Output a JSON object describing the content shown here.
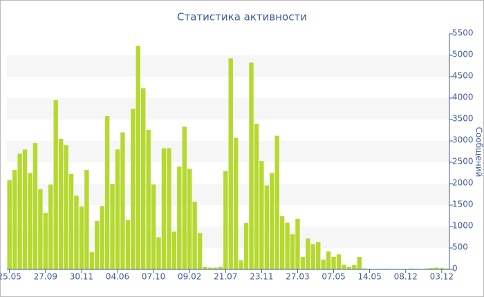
{
  "chart_data": {
    "type": "bar",
    "title": "Статистика активности",
    "y_axis_label": "Сообщений",
    "categories": [
      "25.05",
      null,
      null,
      null,
      null,
      null,
      null,
      "27.09",
      null,
      null,
      null,
      null,
      null,
      null,
      "30.11",
      null,
      null,
      null,
      null,
      null,
      null,
      "04.06",
      null,
      null,
      null,
      null,
      null,
      null,
      "07.10",
      null,
      null,
      null,
      null,
      null,
      null,
      "09.02",
      null,
      null,
      null,
      null,
      null,
      null,
      "21.07",
      null,
      null,
      null,
      null,
      null,
      null,
      "23.11",
      null,
      null,
      null,
      null,
      null,
      null,
      "27.03",
      null,
      null,
      null,
      null,
      null,
      null,
      "07.05",
      null,
      null,
      null,
      null,
      null,
      null,
      "14.05",
      null,
      null,
      null,
      null,
      null,
      null,
      "08.12",
      null,
      null,
      null,
      null,
      null,
      null,
      "03.12",
      null
    ],
    "values": [
      2080,
      2320,
      2700,
      2800,
      2250,
      2950,
      1870,
      1320,
      1980,
      3950,
      3050,
      2900,
      2230,
      1720,
      1470,
      2320,
      400,
      1130,
      1480,
      3580,
      2000,
      2800,
      3200,
      1150,
      3750,
      5220,
      4230,
      3260,
      1980,
      750,
      2830,
      2830,
      880,
      2400,
      3330,
      2350,
      1580,
      850,
      60,
      40,
      40,
      60,
      2300,
      4930,
      3070,
      210,
      1080,
      4830,
      3400,
      2530,
      1960,
      2250,
      3120,
      1240,
      1090,
      820,
      1180,
      290,
      720,
      590,
      640,
      230,
      420,
      290,
      350,
      110,
      60,
      100,
      290,
      20,
      15,
      10,
      10,
      15,
      10,
      10,
      15,
      10,
      20,
      15,
      10,
      20,
      30,
      40,
      30,
      20
    ],
    "color": "#b5d930",
    "ylim": [
      0,
      5500
    ],
    "yticks": [
      0,
      500,
      1000,
      1500,
      2000,
      2500,
      3000,
      3500,
      4000,
      4500,
      5000,
      5500
    ],
    "grid": true
  }
}
